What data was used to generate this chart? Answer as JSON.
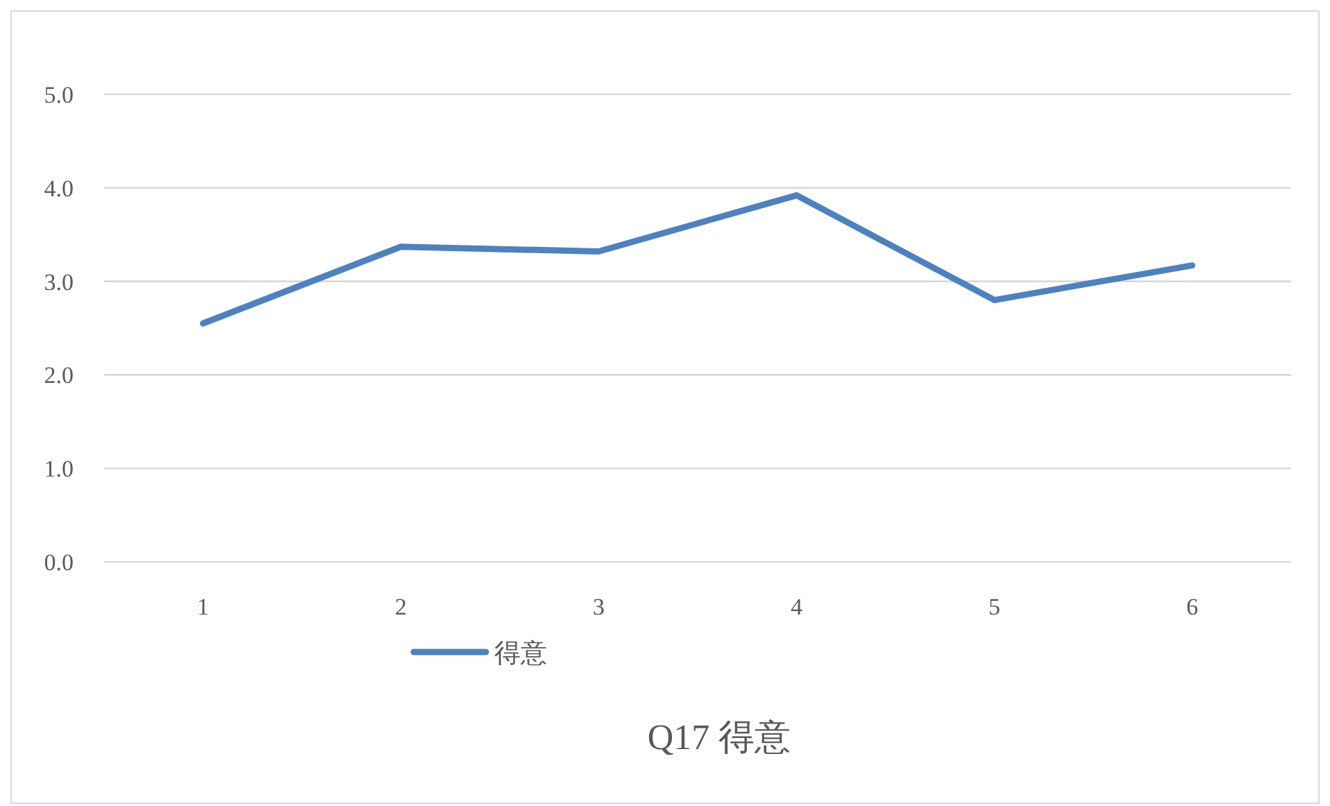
{
  "chart_data": {
    "type": "line",
    "title": "Q17 得意",
    "categories": [
      "1",
      "2",
      "3",
      "4",
      "5",
      "6"
    ],
    "series": [
      {
        "name": "得意",
        "color": "#4f81bd",
        "values": [
          2.55,
          3.37,
          3.32,
          3.92,
          2.8,
          3.17
        ]
      }
    ],
    "ylim": [
      0,
      5
    ],
    "yticks": [
      {
        "value": 0,
        "label": "0.0"
      },
      {
        "value": 1,
        "label": "1.0"
      },
      {
        "value": 2,
        "label": "2.0"
      },
      {
        "value": 3,
        "label": "3.0"
      },
      {
        "value": 4,
        "label": "4.0"
      },
      {
        "value": 5,
        "label": "5.0"
      }
    ],
    "grid": "y",
    "legend": "bottom",
    "marker": "none",
    "line_style": "solid"
  }
}
